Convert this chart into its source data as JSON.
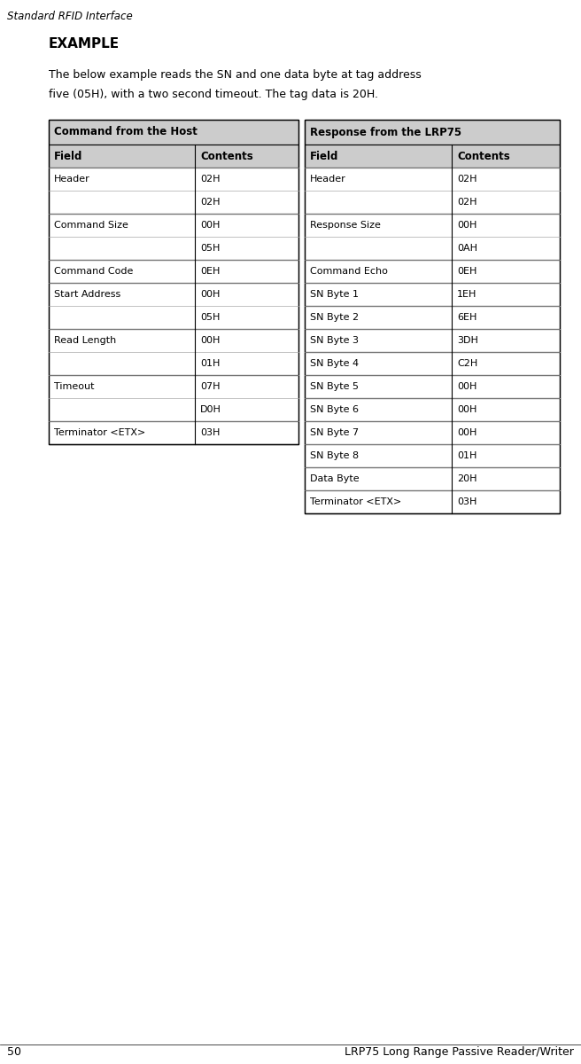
{
  "page_title": "Standard RFID Interface",
  "page_number": "50",
  "page_footer": "LRP75 Long Range Passive Reader/Writer",
  "section_title": "EXAMPLE",
  "desc_line1": "The below example reads the SN and one data byte at tag address",
  "desc_line2": "five (05H), with a two second timeout. The tag data is 20H.",
  "left_table_title": "Command from the Host",
  "right_table_title": "Response from the LRP75",
  "left_headers": [
    "Field",
    "Contents"
  ],
  "right_headers": [
    "Field",
    "Contents"
  ],
  "left_rows": [
    [
      "Header",
      "02H"
    ],
    [
      "",
      "02H"
    ],
    [
      "Command Size",
      "00H"
    ],
    [
      "",
      "05H"
    ],
    [
      "Command Code",
      "0EH"
    ],
    [
      "Start Address",
      "00H"
    ],
    [
      "",
      "05H"
    ],
    [
      "Read Length",
      "00H"
    ],
    [
      "",
      "01H"
    ],
    [
      "Timeout",
      "07H"
    ],
    [
      "",
      "D0H"
    ],
    [
      "Terminator <ETX>",
      "03H"
    ]
  ],
  "right_rows": [
    [
      "Header",
      "02H"
    ],
    [
      "",
      "02H"
    ],
    [
      "Response Size",
      "00H"
    ],
    [
      "",
      "0AH"
    ],
    [
      "Command Echo",
      "0EH"
    ],
    [
      "SN Byte 1",
      "1EH"
    ],
    [
      "SN Byte 2",
      "6EH"
    ],
    [
      "SN Byte 3",
      "3DH"
    ],
    [
      "SN Byte 4",
      "C2H"
    ],
    [
      "SN Byte 5",
      "00H"
    ],
    [
      "SN Byte 6",
      "00H"
    ],
    [
      "SN Byte 7",
      "00H"
    ],
    [
      "SN Byte 8",
      "01H"
    ],
    [
      "Data Byte",
      "20H"
    ],
    [
      "Terminator <ETX>",
      "03H"
    ]
  ],
  "fig_w": 6.56,
  "fig_h": 12.0,
  "dpi": 100,
  "header_bg": "#cccccc",
  "white": "#ffffff",
  "black": "#000000"
}
